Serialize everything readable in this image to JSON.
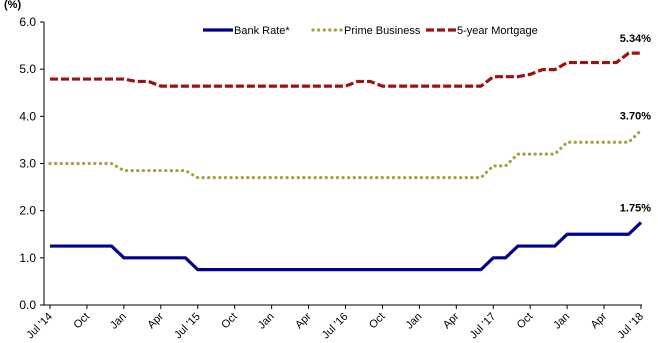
{
  "chart_data": {
    "type": "line",
    "ylabel_unit": "(%)",
    "ylim": [
      0,
      6
    ],
    "yticks": [
      "0.0",
      "1.0",
      "2.0",
      "3.0",
      "4.0",
      "5.0",
      "6.0"
    ],
    "grid": false,
    "legend_position": "top",
    "x_tick_labels": [
      "Jul '14",
      "Oct",
      "Jan",
      "Apr",
      "Jul '15",
      "Oct",
      "Jan",
      "Apr",
      "Jul '16",
      "Oct",
      "Jan",
      "Apr",
      "Jul '17",
      "Oct",
      "Jan",
      "Apr",
      "Jul '18"
    ],
    "x": [
      "2014-07",
      "2014-08",
      "2014-09",
      "2014-10",
      "2014-11",
      "2014-12",
      "2015-01",
      "2015-02",
      "2015-03",
      "2015-04",
      "2015-05",
      "2015-06",
      "2015-07",
      "2015-08",
      "2015-09",
      "2015-10",
      "2015-11",
      "2015-12",
      "2016-01",
      "2016-02",
      "2016-03",
      "2016-04",
      "2016-05",
      "2016-06",
      "2016-07",
      "2016-08",
      "2016-09",
      "2016-10",
      "2016-11",
      "2016-12",
      "2017-01",
      "2017-02",
      "2017-03",
      "2017-04",
      "2017-05",
      "2017-06",
      "2017-07",
      "2017-08",
      "2017-09",
      "2017-10",
      "2017-11",
      "2017-12",
      "2018-01",
      "2018-02",
      "2018-03",
      "2018-04",
      "2018-05",
      "2018-06",
      "2018-07"
    ],
    "series": [
      {
        "name": "Bank Rate*",
        "color": "#00008b",
        "style": "solid",
        "values": [
          1.25,
          1.25,
          1.25,
          1.25,
          1.25,
          1.25,
          1.0,
          1.0,
          1.0,
          1.0,
          1.0,
          1.0,
          0.75,
          0.75,
          0.75,
          0.75,
          0.75,
          0.75,
          0.75,
          0.75,
          0.75,
          0.75,
          0.75,
          0.75,
          0.75,
          0.75,
          0.75,
          0.75,
          0.75,
          0.75,
          0.75,
          0.75,
          0.75,
          0.75,
          0.75,
          0.75,
          1.0,
          1.0,
          1.25,
          1.25,
          1.25,
          1.25,
          1.5,
          1.5,
          1.5,
          1.5,
          1.5,
          1.5,
          1.75
        ],
        "end_label": "1.75%"
      },
      {
        "name": "Prime Business",
        "color": "#a8a040",
        "style": "dotted",
        "values": [
          3.0,
          3.0,
          3.0,
          3.0,
          3.0,
          3.0,
          2.85,
          2.85,
          2.85,
          2.85,
          2.85,
          2.85,
          2.7,
          2.7,
          2.7,
          2.7,
          2.7,
          2.7,
          2.7,
          2.7,
          2.7,
          2.7,
          2.7,
          2.7,
          2.7,
          2.7,
          2.7,
          2.7,
          2.7,
          2.7,
          2.7,
          2.7,
          2.7,
          2.7,
          2.7,
          2.7,
          2.95,
          2.95,
          3.2,
          3.2,
          3.2,
          3.2,
          3.45,
          3.45,
          3.45,
          3.45,
          3.45,
          3.45,
          3.7
        ],
        "end_label": "3.70%"
      },
      {
        "name": "5-year Mortgage",
        "color": "#a01010",
        "style": "dashed",
        "values": [
          4.79,
          4.79,
          4.79,
          4.79,
          4.79,
          4.79,
          4.79,
          4.74,
          4.74,
          4.64,
          4.64,
          4.64,
          4.64,
          4.64,
          4.64,
          4.64,
          4.64,
          4.64,
          4.64,
          4.64,
          4.64,
          4.64,
          4.64,
          4.64,
          4.64,
          4.74,
          4.74,
          4.64,
          4.64,
          4.64,
          4.64,
          4.64,
          4.64,
          4.64,
          4.64,
          4.64,
          4.84,
          4.84,
          4.84,
          4.89,
          4.99,
          4.99,
          5.14,
          5.14,
          5.14,
          5.14,
          5.14,
          5.34,
          5.34
        ],
        "end_label": "5.34%"
      }
    ]
  }
}
